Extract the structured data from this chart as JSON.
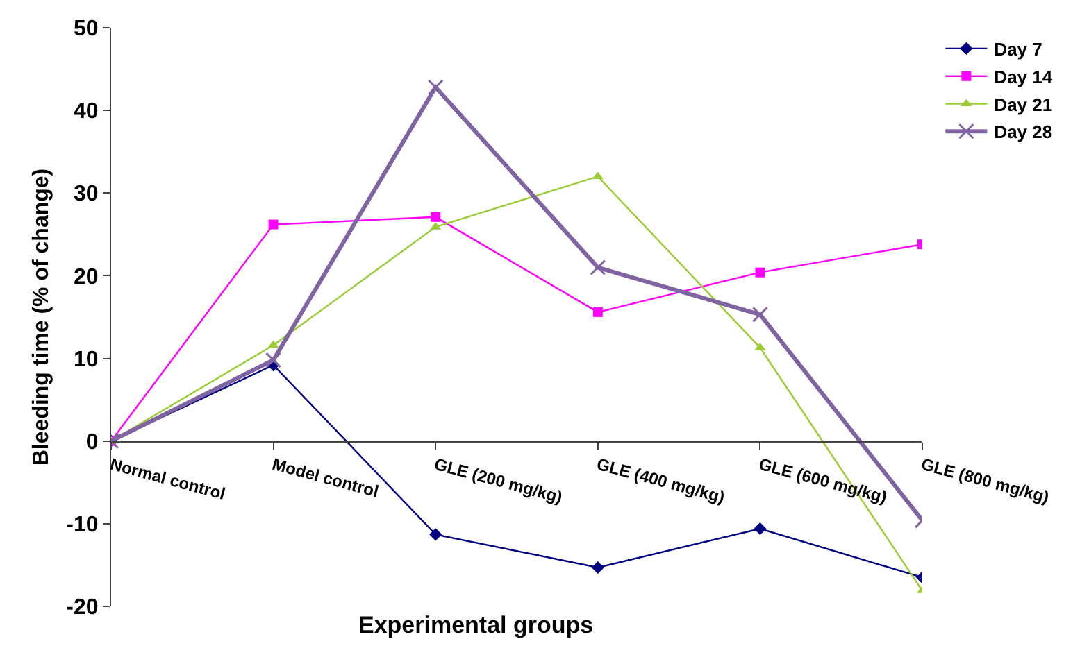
{
  "chart_data": {
    "type": "line",
    "xlabel": "Experimental groups",
    "ylabel": "Bleeding time (% of change)",
    "categories": [
      "Normal control",
      "Model control",
      "GLE (200 mg/kg)",
      "GLE (400 mg/kg)",
      "GLE (600 mg/kg)",
      "GLE (800 mg/kg)"
    ],
    "series": [
      {
        "name": "Day 7",
        "color": "#000080",
        "marker": "diamond",
        "values": [
          0,
          9.2,
          -11.3,
          -15.3,
          -10.6,
          -16.5
        ]
      },
      {
        "name": "Day 14",
        "color": "#ff00ff",
        "marker": "square",
        "values": [
          0,
          26.2,
          27.1,
          15.6,
          20.4,
          23.8
        ]
      },
      {
        "name": "Day 21",
        "color": "#99cc33",
        "marker": "triangle",
        "values": [
          0,
          11.6,
          25.9,
          32.0,
          11.3,
          -18.1
        ]
      },
      {
        "name": "Day 28",
        "color": "#8064a2",
        "marker": "cross",
        "values": [
          0,
          9.8,
          42.8,
          21.0,
          15.3,
          -9.6
        ]
      }
    ],
    "ylim": [
      -20,
      50
    ],
    "yticks": [
      -20,
      -10,
      0,
      10,
      20,
      30,
      40,
      50
    ],
    "grid": false,
    "legend": "top right"
  }
}
